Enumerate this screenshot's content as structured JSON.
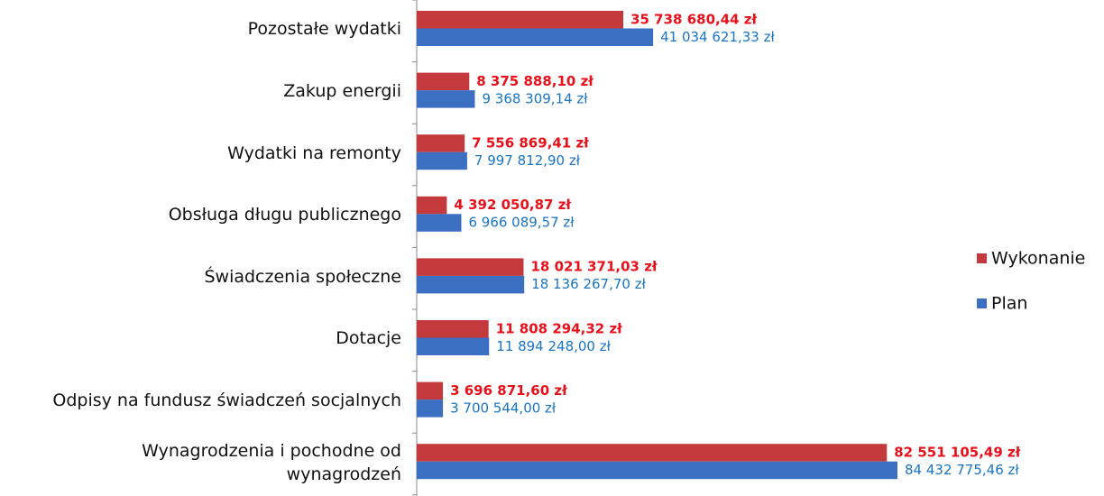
{
  "chart_data": {
    "type": "bar",
    "orientation": "horizontal",
    "categories": [
      "Pozostałe wydatki",
      "Zakup energii",
      "Wydatki na remonty",
      "Obsługa długu publicznego",
      "Świadczenia społeczne",
      "Dotacje",
      "Odpisy na fundusz świadczeń socjalnych",
      "Wynagrodzenia i pochodne od wynagrodzeń"
    ],
    "series": [
      {
        "name": "Wykonanie",
        "color": "#c43a3c",
        "label_color": "#e8101a",
        "values": [
          35738680.44,
          8375888.1,
          7556869.41,
          4392050.87,
          18021371.03,
          11808294.32,
          3696871.6,
          82551105.49
        ],
        "value_labels": [
          "35 738 680,44 zł",
          "8 375 888,10 zł",
          "7 556 869,41 zł",
          "4 392 050,87 zł",
          "18 021 371,03 zł",
          "11 808 294,32 zł",
          "3 696 871,60 zł",
          "82 551 105,49 zł"
        ]
      },
      {
        "name": "Plan",
        "color": "#3b6fc2",
        "label_color": "#1a74c4",
        "values": [
          41034621.33,
          9368309.14,
          7997812.9,
          6966089.57,
          18136267.7,
          11894248.0,
          3700544.0,
          84432775.46
        ],
        "value_labels": [
          "41 034 621,33 zł",
          "9 368 309,14 zł",
          "7 997 812,90 zł",
          "6 966 089,57 zł",
          "18 136 267,70 zł",
          "11 894 248,00 zł",
          "3 700 544,00 zł",
          "84 432 775,46 zł"
        ]
      }
    ],
    "legend": "right"
  }
}
